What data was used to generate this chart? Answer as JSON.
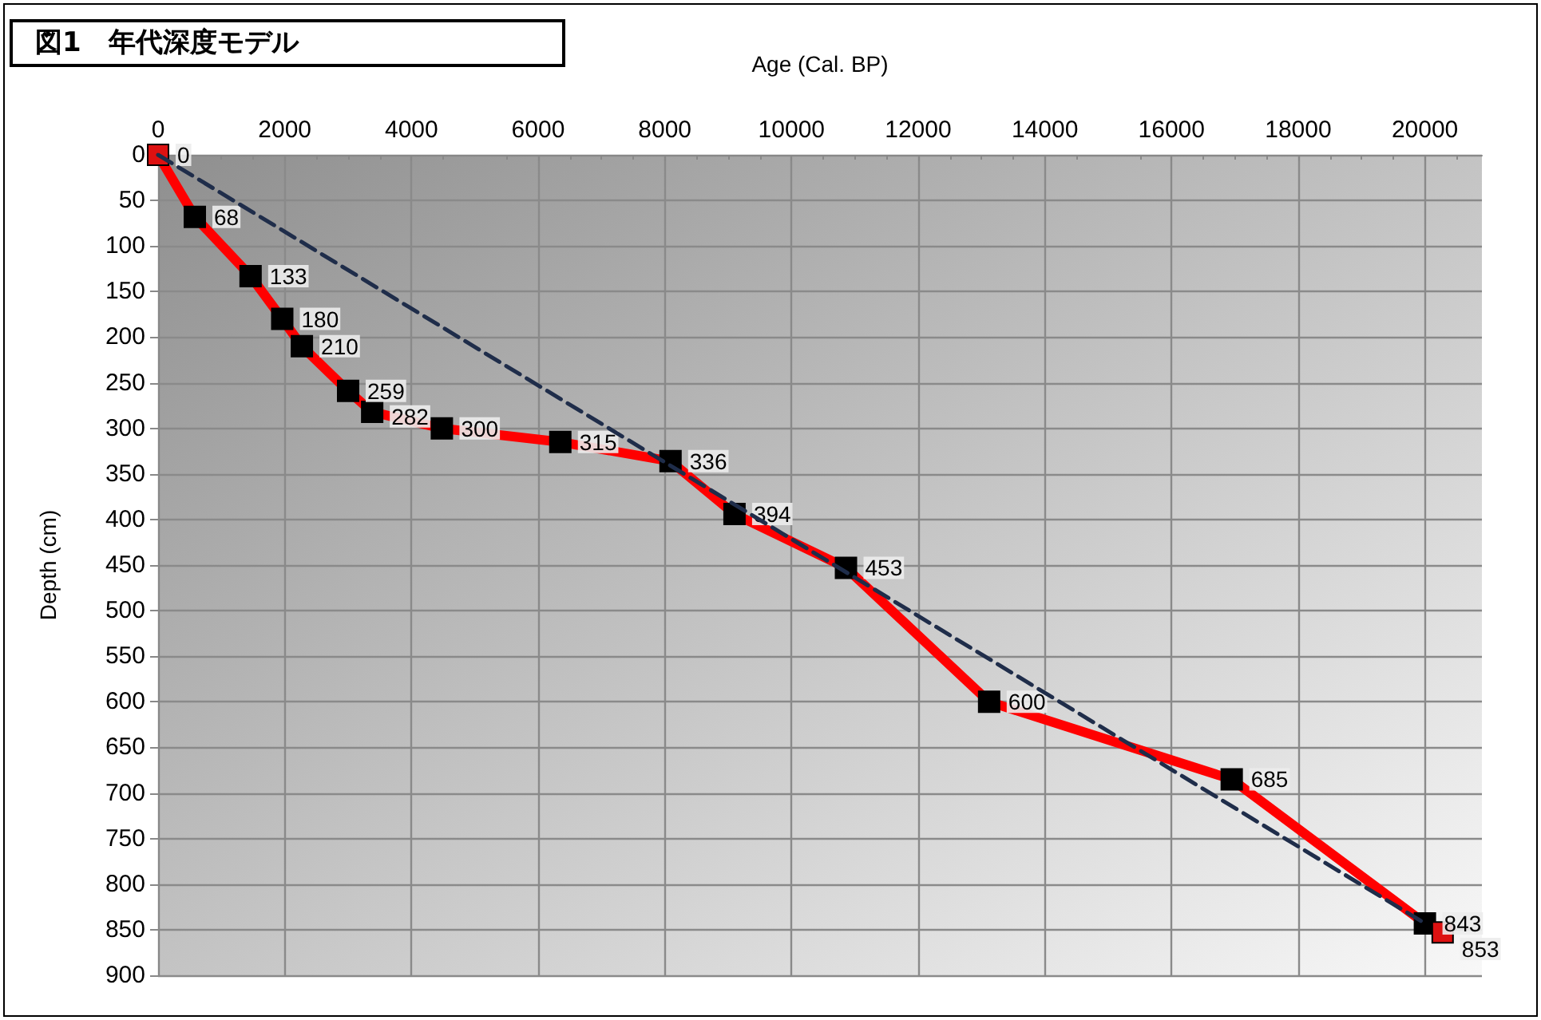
{
  "chart_data": {
    "type": "line",
    "title": "図1　年代深度モデル",
    "xlabel": "Age (Cal. BP)",
    "ylabel": "Depth (cm)",
    "xlim": [
      0,
      20900
    ],
    "xticks": [
      0,
      2000,
      4000,
      6000,
      8000,
      10000,
      12000,
      14000,
      16000,
      18000,
      20000
    ],
    "ylim": [
      900,
      0
    ],
    "yticks": [
      0,
      50,
      100,
      150,
      200,
      250,
      300,
      350,
      400,
      450,
      500,
      550,
      600,
      650,
      700,
      750,
      800,
      850,
      900
    ],
    "grid": true,
    "marker": "square",
    "series": [
      {
        "color": "#ff0000",
        "line_style": "solid",
        "x": [
          0,
          580,
          1460,
          1960,
          2270,
          3000,
          3380,
          4480,
          6350,
          8090,
          9100,
          10860,
          13120,
          16950,
          20000,
          20280
        ],
        "values": [
          0,
          68,
          133,
          180,
          210,
          259,
          282,
          300,
          315,
          336,
          394,
          453,
          600,
          685,
          843,
          853
        ],
        "value_labels": [
          "0",
          "68",
          "133",
          "180",
          "210",
          "259",
          "282",
          "300",
          "315",
          "336",
          "394",
          "453",
          "600",
          "685",
          "843",
          "853"
        ],
        "colors": [
          "#dd1111",
          "#000000",
          "#000000",
          "#000000",
          "#000000",
          "#000000",
          "#000000",
          "#000000",
          "#000000",
          "#000000",
          "#000000",
          "#000000",
          "#000000",
          "#000000",
          "#000000",
          "#dd1111"
        ]
      },
      {
        "color": "#1f2d4a",
        "marker": "none",
        "line_style": "dashed",
        "x": [
          0,
          20000
        ],
        "values": [
          0,
          843
        ]
      }
    ]
  }
}
